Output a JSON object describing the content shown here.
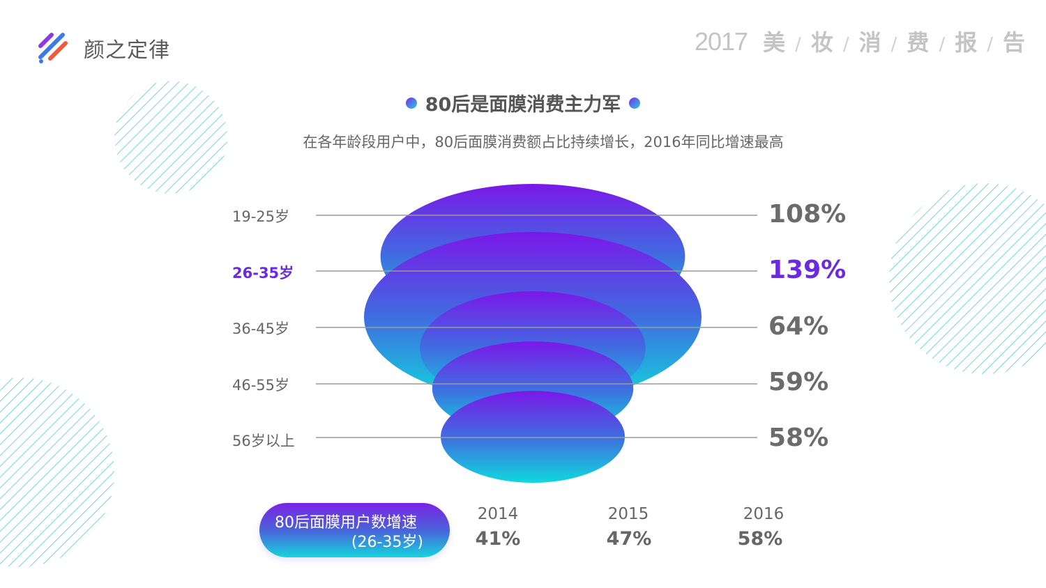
{
  "brand": {
    "name": "颜之定律"
  },
  "report": {
    "year": "2017",
    "chars": [
      "美",
      "妆",
      "消",
      "费",
      "报",
      "告"
    ],
    "separator": "/"
  },
  "title": "80后是面膜消费主力军",
  "subtitle": "在各年龄段用户中，80后面膜消费额占比持续增长，2016年同比增速最高",
  "colors": {
    "accent": "#6a2ae0",
    "gradient_top": "#7a18e8",
    "gradient_bottom": "#10d8dc",
    "stripe": "#4ccfc9",
    "text": "#666666"
  },
  "chart_data": [
    {
      "type": "bar",
      "title": "80后是面膜消费主力军",
      "categories": [
        "19-25岁",
        "26-35岁",
        "36-45岁",
        "46-55岁",
        "56岁以上"
      ],
      "values": [
        108,
        139,
        64,
        59,
        58
      ],
      "value_labels": [
        "108%",
        "139%",
        "64%",
        "59%",
        "58%"
      ],
      "highlight_index": 1,
      "unit": "%"
    },
    {
      "type": "table",
      "title": "80后面膜用户数增速",
      "title_lines": [
        "80后面膜用户数增速",
        "(26-35岁)"
      ],
      "categories": [
        "2014",
        "2015",
        "2016"
      ],
      "values": [
        41,
        47,
        58
      ],
      "value_labels": [
        "41%",
        "47%",
        "58%"
      ]
    }
  ]
}
